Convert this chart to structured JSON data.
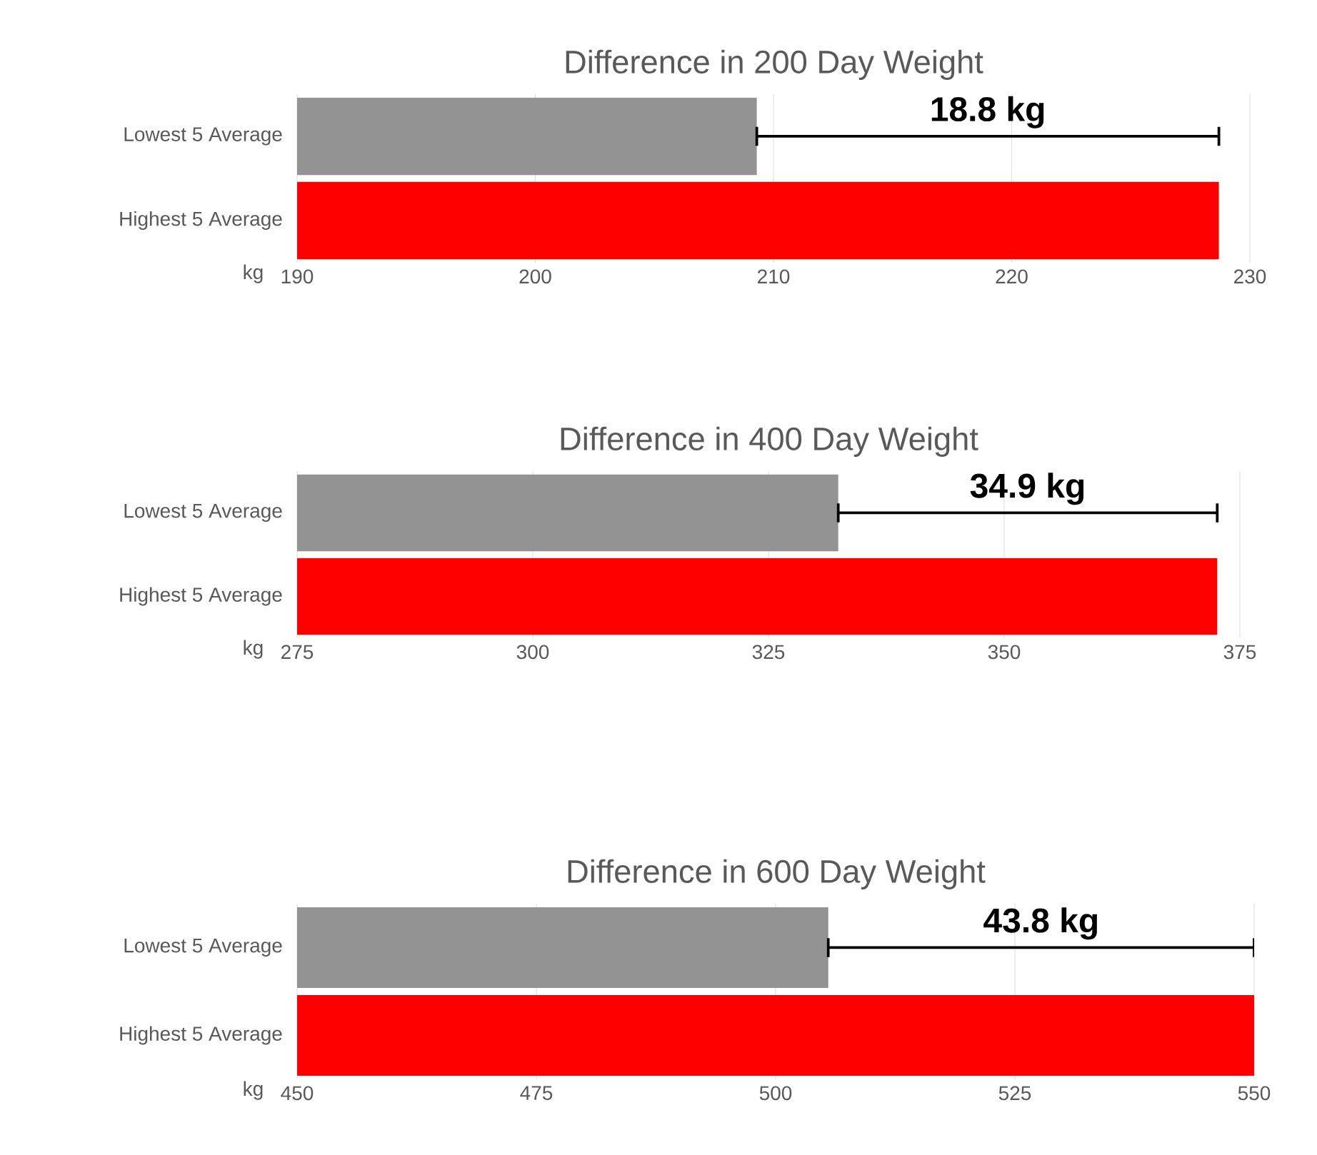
{
  "chart_data": [
    {
      "type": "bar",
      "orientation": "horizontal",
      "title": "Difference in 200 Day Weight",
      "xlabel": "kg",
      "categories": [
        "Lowest 5 Average",
        "Highest 5 Average"
      ],
      "values": [
        209.3,
        228.7
      ],
      "colors": [
        "#939393",
        "#ff0000"
      ],
      "xlim": [
        190,
        230
      ],
      "xticks": [
        190,
        200,
        210,
        220,
        230
      ],
      "grid": "x",
      "annotations": [
        "18.8 kg"
      ]
    },
    {
      "type": "bar",
      "orientation": "horizontal",
      "title": "Difference in 400 Day Weight",
      "xlabel": "kg",
      "categories": [
        "Lowest 5 Average",
        "Highest 5 Average"
      ],
      "values": [
        332.4,
        372.6
      ],
      "colors": [
        "#939393",
        "#ff0000"
      ],
      "xlim": [
        275,
        375
      ],
      "xticks": [
        275,
        300,
        325,
        350,
        375
      ],
      "grid": "x",
      "annotations": [
        "34.9 kg"
      ]
    },
    {
      "type": "bar",
      "orientation": "horizontal",
      "title": "Difference in 600 Day Weight",
      "xlabel": "kg",
      "categories": [
        "Lowest 5 Average",
        "Highest 5 Average"
      ],
      "values": [
        505.5,
        550
      ],
      "colors": [
        "#939393",
        "#ff0000"
      ],
      "xlim": [
        450,
        550
      ],
      "xticks": [
        450,
        475,
        500,
        525,
        550
      ],
      "grid": "x",
      "annotations": [
        "43.8 kg"
      ]
    }
  ]
}
